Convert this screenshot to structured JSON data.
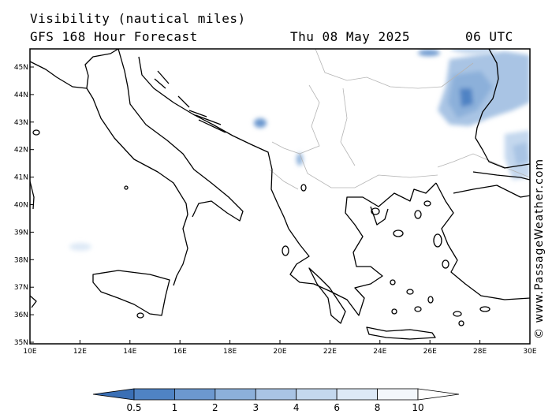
{
  "header": {
    "title": "Visibility (nautical miles)",
    "model": "GFS 168 Hour Forecast",
    "date": "Thu 08 May 2025",
    "time": "06 UTC"
  },
  "map": {
    "lon_labels": [
      "10E",
      "12E",
      "14E",
      "16E",
      "18E",
      "20E",
      "22E",
      "24E",
      "26E",
      "28E",
      "30E"
    ],
    "lat_labels": [
      "45N",
      "44N",
      "43N",
      "42N",
      "41N",
      "40N",
      "39N",
      "38N",
      "37N",
      "36N",
      "35N"
    ]
  },
  "colorbar": {
    "labels": [
      "0.5",
      "1",
      "2",
      "3",
      "4",
      "6",
      "8",
      "10"
    ],
    "colors": [
      "#3a6fb5",
      "#4f83c4",
      "#6c98cf",
      "#8cb0da",
      "#a9c4e4",
      "#c4d8ee",
      "#dde9f6",
      "#f3f7fc"
    ]
  },
  "credit": "© www.PassageWeather.com"
}
